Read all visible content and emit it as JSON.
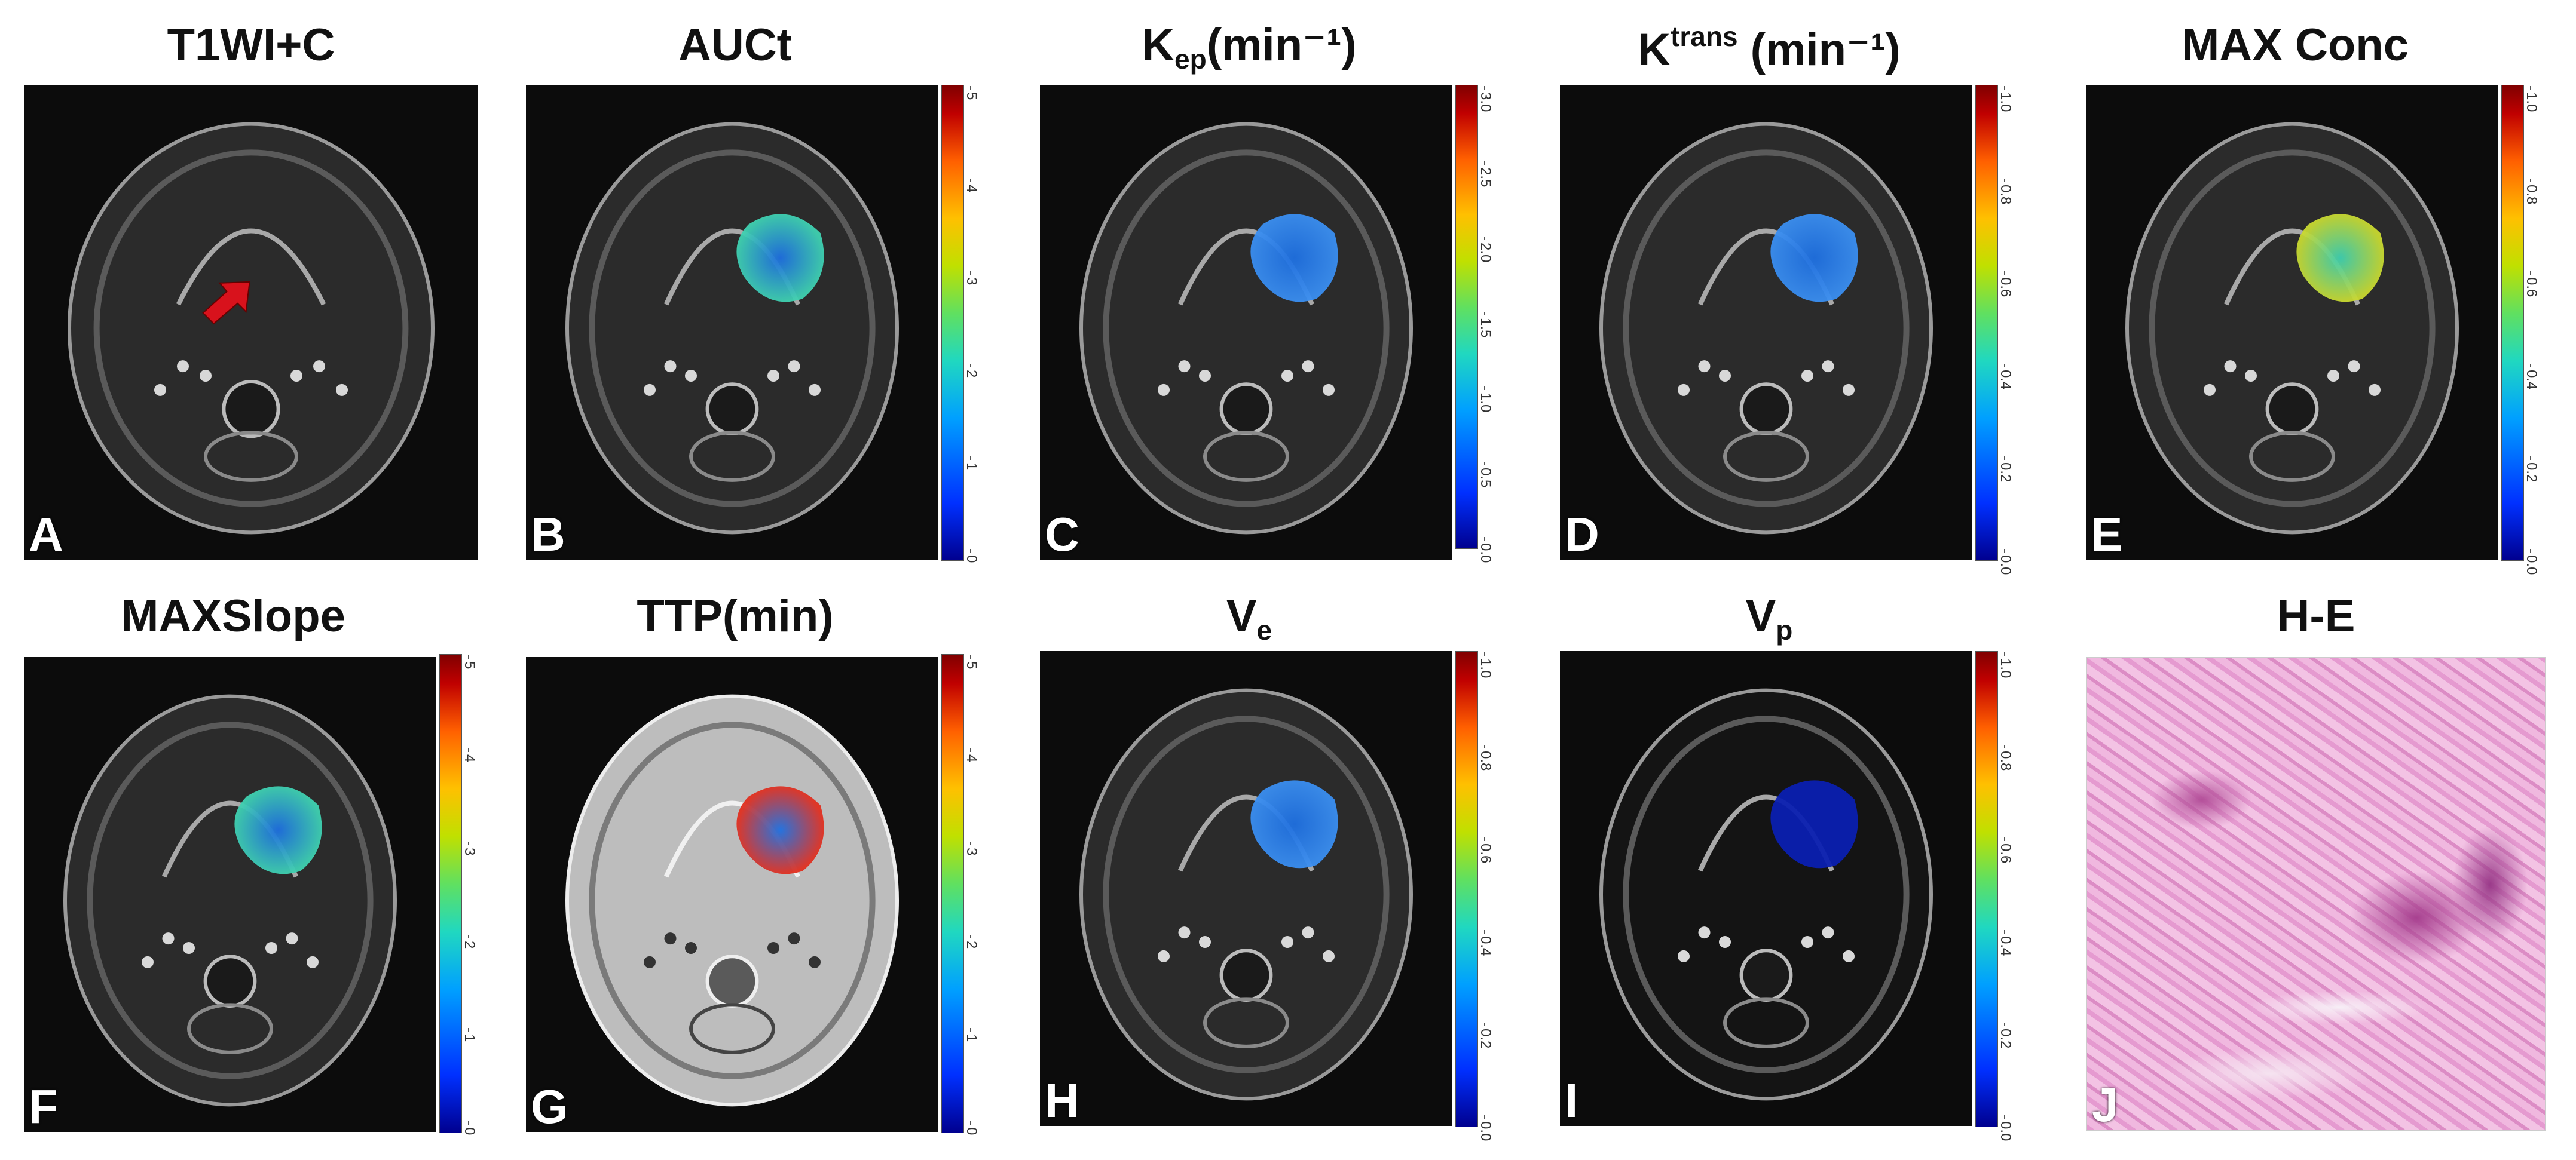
{
  "figure": {
    "panels": [
      {
        "id": "A",
        "title": "T1WI+C",
        "kind": "mri",
        "overlay": "none",
        "arrow": true
      },
      {
        "id": "B",
        "title": "AUCt",
        "kind": "mri",
        "overlay": "blue-green",
        "colorbar": [
          "0",
          "1",
          "2",
          "3",
          "4",
          "5"
        ]
      },
      {
        "id": "C",
        "title_main": "K",
        "title_sub": "ep",
        "title_rest": "(min⁻¹)",
        "kind": "mri",
        "overlay": "blue",
        "colorbar": [
          "0.0",
          "0.5",
          "1.0",
          "1.5",
          "2.0",
          "2.5",
          "3.0"
        ]
      },
      {
        "id": "D",
        "title_main": "K",
        "title_sup": "trans",
        "title_rest": " (min⁻¹)",
        "kind": "mri",
        "overlay": "blue",
        "colorbar": [
          "0.0",
          "0.2",
          "0.4",
          "0.6",
          "0.8",
          "1.0"
        ]
      },
      {
        "id": "E",
        "title": "MAX Conc",
        "kind": "mri",
        "overlay": "green-yellow",
        "colorbar": [
          "0.0",
          "0.2",
          "0.4",
          "0.6",
          "0.8",
          "1.0"
        ]
      },
      {
        "id": "F",
        "title": "MAXSlope",
        "kind": "mri",
        "overlay": "blue-green",
        "colorbar": [
          "0",
          "1",
          "2",
          "3",
          "4",
          "5"
        ]
      },
      {
        "id": "G",
        "title": "TTP(min)",
        "kind": "mri-bright",
        "overlay": "blue-red",
        "colorbar": [
          "0",
          "1",
          "2",
          "3",
          "4",
          "5"
        ]
      },
      {
        "id": "H",
        "title_main": "V",
        "title_sub": "e",
        "kind": "mri",
        "overlay": "blue",
        "colorbar": [
          "0.0",
          "0.2",
          "0.4",
          "0.6",
          "0.8",
          "1.0"
        ]
      },
      {
        "id": "I",
        "title_main": "V",
        "title_sub": "p",
        "kind": "mri-dark",
        "overlay": "deep-blue",
        "colorbar": [
          "0.0",
          "0.2",
          "0.4",
          "0.6",
          "0.8",
          "1.0"
        ]
      },
      {
        "id": "J",
        "title": "H-E",
        "kind": "histology",
        "overlay": "none"
      }
    ]
  },
  "colors": {
    "arrow": "#d8121c",
    "overlay_blue": "#1e6fe0",
    "overlay_green": "#3fd0b0",
    "overlay_deep_blue": "#0a1fb0",
    "overlay_yellow": "#c8d830"
  }
}
